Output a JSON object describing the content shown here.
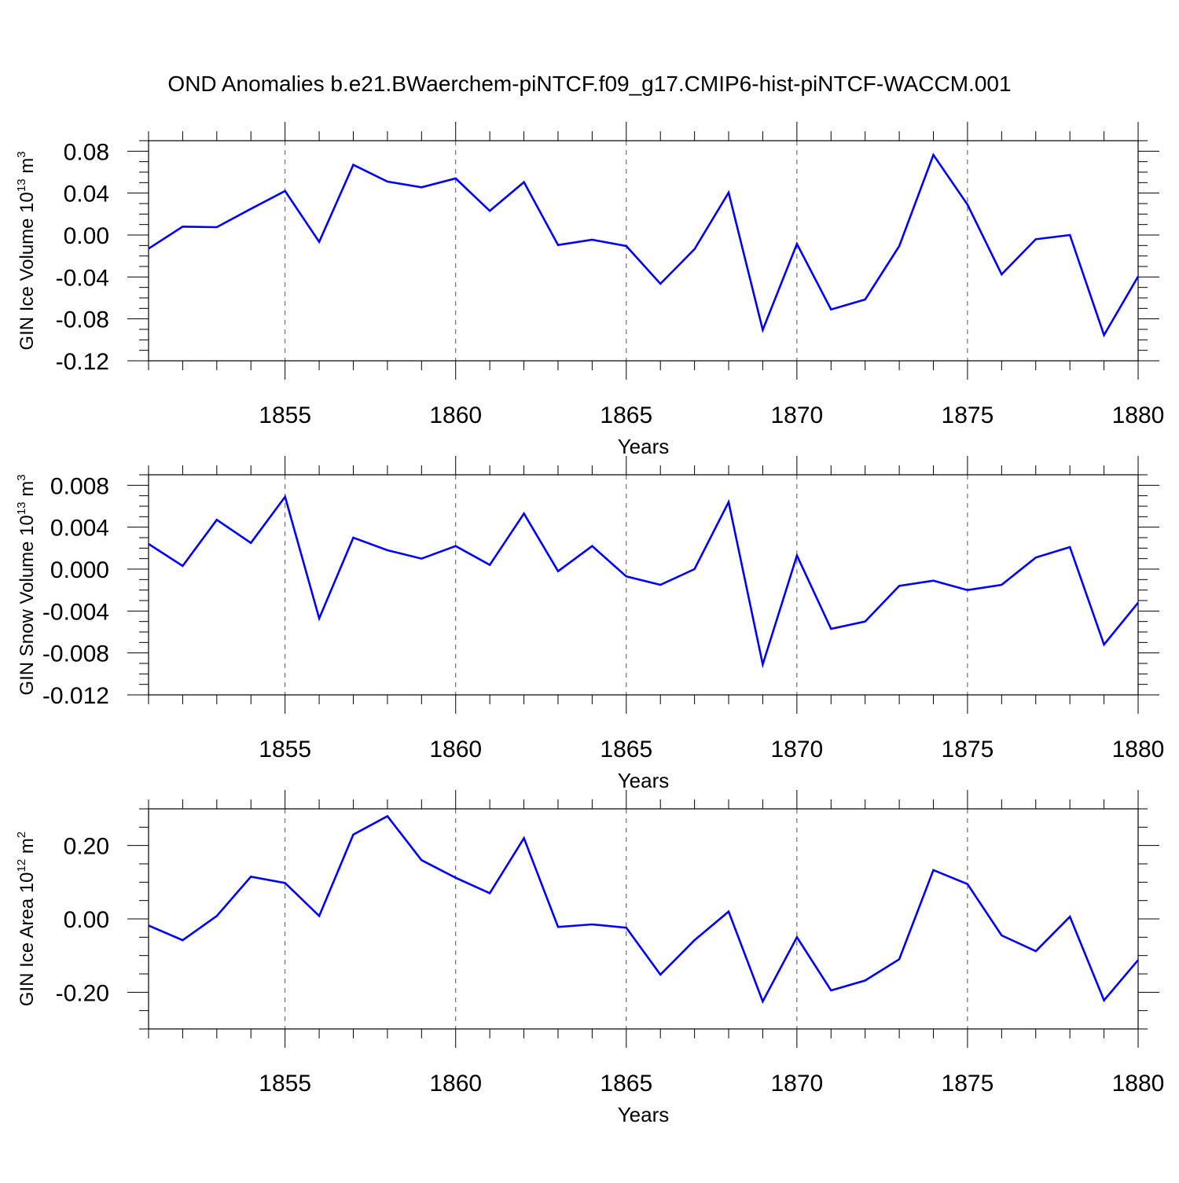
{
  "title": "OND Anomalies b.e21.BWaerchem-piNTCF.f09_g17.CMIP6-hist-piNTCF-WACCM.001",
  "line_color": "#0000ff",
  "chart_data": [
    {
      "type": "line",
      "ylabel": "GIN Ice Volume 10",
      "ylabel_exp": "13",
      "ylabel_unit": " m",
      "ylabel_unit_exp": "3",
      "xlabel": "Years",
      "xlim": [
        1851,
        1880
      ],
      "ylim": [
        -0.12,
        0.09
      ],
      "yticks": [
        0.08,
        0.04,
        0.0,
        -0.04,
        -0.08,
        -0.12
      ],
      "ytick_labels": [
        "0.08",
        "0.04",
        "0.00",
        "-0.04",
        "-0.08",
        "-0.12"
      ],
      "xticks": [
        1855,
        1860,
        1865,
        1870,
        1875,
        1880
      ],
      "xtick_labels": [
        "1855",
        "1860",
        "1865",
        "1870",
        "1875",
        "1880"
      ],
      "x": [
        1851,
        1852,
        1853,
        1854,
        1855,
        1856,
        1857,
        1858,
        1859,
        1860,
        1861,
        1862,
        1863,
        1864,
        1865,
        1866,
        1867,
        1868,
        1869,
        1870,
        1871,
        1872,
        1873,
        1874,
        1875,
        1876,
        1877,
        1878,
        1879,
        1880
      ],
      "y": [
        -0.013,
        0.008,
        0.0075,
        0.025,
        0.042,
        -0.0065,
        0.067,
        0.051,
        0.0455,
        0.054,
        0.023,
        0.0505,
        -0.0095,
        -0.0045,
        -0.0105,
        -0.0465,
        -0.0135,
        0.0405,
        -0.0905,
        -0.0085,
        -0.071,
        -0.0615,
        -0.0105,
        0.0765,
        0.029,
        -0.0375,
        -0.004,
        0.0,
        -0.0955,
        -0.0395
      ]
    },
    {
      "type": "line",
      "ylabel": "GIN Snow Volume 10",
      "ylabel_exp": "13",
      "ylabel_unit": " m",
      "ylabel_unit_exp": "3",
      "xlabel": "Years",
      "xlim": [
        1851,
        1880
      ],
      "ylim": [
        -0.012,
        0.009
      ],
      "yticks": [
        0.008,
        0.004,
        0.0,
        -0.004,
        -0.008,
        -0.012
      ],
      "ytick_labels": [
        "0.008",
        "0.004",
        "0.000",
        "-0.004",
        "-0.008",
        "-0.012"
      ],
      "xticks": [
        1855,
        1860,
        1865,
        1870,
        1875,
        1880
      ],
      "xtick_labels": [
        "1855",
        "1860",
        "1865",
        "1870",
        "1875",
        "1880"
      ],
      "x": [
        1851,
        1852,
        1853,
        1854,
        1855,
        1856,
        1857,
        1858,
        1859,
        1860,
        1861,
        1862,
        1863,
        1864,
        1865,
        1866,
        1867,
        1868,
        1869,
        1870,
        1871,
        1872,
        1873,
        1874,
        1875,
        1876,
        1877,
        1878,
        1879,
        1880
      ],
      "y": [
        0.0024,
        0.0003,
        0.0047,
        0.0025,
        0.0069,
        -0.0047,
        0.003,
        0.0018,
        0.001,
        0.0022,
        0.0004,
        0.0053,
        -0.0002,
        0.0022,
        -0.0007,
        -0.0015,
        0.0,
        0.0064,
        -0.0091,
        0.0013,
        -0.0057,
        -0.005,
        -0.0016,
        -0.0011,
        -0.002,
        -0.0015,
        0.0011,
        0.0021,
        -0.0072,
        -0.0032
      ]
    },
    {
      "type": "line",
      "ylabel": "GIN Ice Area 10",
      "ylabel_exp": "12",
      "ylabel_unit": " m",
      "ylabel_unit_exp": "2",
      "xlabel": "Years",
      "xlim": [
        1851,
        1880
      ],
      "ylim": [
        -0.3,
        0.3
      ],
      "yticks": [
        0.2,
        0.0,
        -0.2
      ],
      "ytick_labels": [
        "0.20",
        "0.00",
        "-0.20"
      ],
      "xticks": [
        1855,
        1860,
        1865,
        1870,
        1875,
        1880
      ],
      "xtick_labels": [
        "1855",
        "1860",
        "1865",
        "1870",
        "1875",
        "1880"
      ],
      "x": [
        1851,
        1852,
        1853,
        1854,
        1855,
        1856,
        1857,
        1858,
        1859,
        1860,
        1861,
        1862,
        1863,
        1864,
        1865,
        1866,
        1867,
        1868,
        1869,
        1870,
        1871,
        1872,
        1873,
        1874,
        1875,
        1876,
        1877,
        1878,
        1879,
        1880
      ],
      "y": [
        -0.018,
        -0.058,
        0.008,
        0.115,
        0.098,
        0.008,
        0.23,
        0.28,
        0.16,
        0.112,
        0.07,
        0.22,
        -0.022,
        -0.015,
        -0.024,
        -0.152,
        -0.058,
        0.02,
        -0.225,
        -0.05,
        -0.195,
        -0.168,
        -0.11,
        0.133,
        0.095,
        -0.045,
        -0.088,
        0.006,
        -0.222,
        -0.112
      ]
    }
  ]
}
